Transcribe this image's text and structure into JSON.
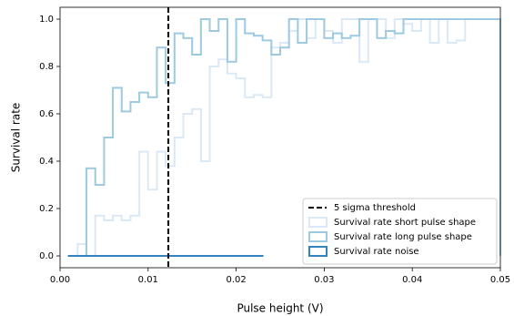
{
  "chart_data": {
    "type": "step-histogram",
    "xlabel": "Pulse height (V)",
    "ylabel": "Survival rate",
    "xlim": [
      0,
      0.05
    ],
    "ylim": [
      -0.05,
      1.05
    ],
    "xticks": [
      {
        "value": 0,
        "label": "0.00"
      },
      0.01,
      0.02,
      0.03,
      0.04,
      0.05
    ],
    "yticks": [
      {
        "value": 0,
        "label": "0.0"
      },
      0.2,
      0.4,
      0.6,
      0.8,
      {
        "value": 1,
        "label": "1.0"
      }
    ],
    "legend": "lower right",
    "threshold": {
      "x": 0.0123,
      "label": "5 sigma threshold",
      "color": "#000000"
    },
    "series": [
      {
        "name": "Survival rate short pulse shape",
        "color": "#dbe9f6",
        "bins": [
          0.002,
          0.003,
          0.004,
          0.005,
          0.006,
          0.007,
          0.008,
          0.009,
          0.01,
          0.011,
          0.012,
          0.013,
          0.014,
          0.015,
          0.016,
          0.017,
          0.018,
          0.019,
          0.02,
          0.021,
          0.022,
          0.023,
          0.024,
          0.025,
          0.026,
          0.027,
          0.028,
          0.029,
          0.03,
          0.031,
          0.032,
          0.033,
          0.034,
          0.035,
          0.036,
          0.037,
          0.038,
          0.039,
          0.04,
          0.041,
          0.042,
          0.043,
          0.044,
          0.045,
          0.046,
          0.047,
          0.048,
          0.049,
          0.05
        ],
        "values": [
          0.05,
          0,
          0.17,
          0.15,
          0.17,
          0.15,
          0.17,
          0.44,
          0.28,
          0.44,
          0.38,
          0.5,
          0.6,
          0.62,
          0.4,
          0.8,
          0.83,
          0.77,
          0.75,
          0.67,
          0.68,
          0.67,
          0.88,
          0.9,
          0.95,
          1.0,
          0.92,
          1.0,
          0.95,
          0.9,
          1.0,
          1.0,
          0.82,
          1.0,
          1.0,
          0.92,
          1.0,
          0.98,
          0.95,
          1.0,
          0.9,
          1.0,
          0.9,
          0.91,
          1.0,
          1.0,
          1.0,
          1.0
        ]
      },
      {
        "name": "Survival rate long pulse shape",
        "color": "#9ecae1",
        "bins": [
          0.002,
          0.003,
          0.004,
          0.005,
          0.006,
          0.007,
          0.008,
          0.009,
          0.01,
          0.011,
          0.012,
          0.013,
          0.014,
          0.015,
          0.016,
          0.017,
          0.018,
          0.019,
          0.02,
          0.021,
          0.022,
          0.023,
          0.024,
          0.025,
          0.026,
          0.027,
          0.028,
          0.029,
          0.03,
          0.031,
          0.032,
          0.033,
          0.034,
          0.035,
          0.036,
          0.037,
          0.038,
          0.039,
          0.04,
          0.041,
          0.042,
          0.043,
          0.044,
          0.045,
          0.046,
          0.047,
          0.048,
          0.049,
          0.05
        ],
        "values": [
          0,
          0.37,
          0.3,
          0.5,
          0.71,
          0.61,
          0.65,
          0.69,
          0.67,
          0.88,
          0.73,
          0.94,
          0.92,
          0.85,
          1.0,
          0.95,
          1.0,
          0.82,
          1.0,
          0.94,
          0.93,
          0.91,
          0.85,
          0.88,
          1.0,
          0.9,
          1.0,
          1.0,
          0.92,
          0.94,
          0.92,
          0.93,
          1.0,
          1.0,
          0.92,
          0.95,
          0.94,
          1.0,
          1.0,
          1.0,
          1.0,
          1.0,
          1.0,
          1.0,
          1.0,
          1.0,
          1.0,
          1.0
        ]
      },
      {
        "name": "Survival rate noise",
        "color": "#3182bd",
        "bins": [
          0.001,
          0.023
        ],
        "values": [
          0
        ]
      }
    ]
  }
}
